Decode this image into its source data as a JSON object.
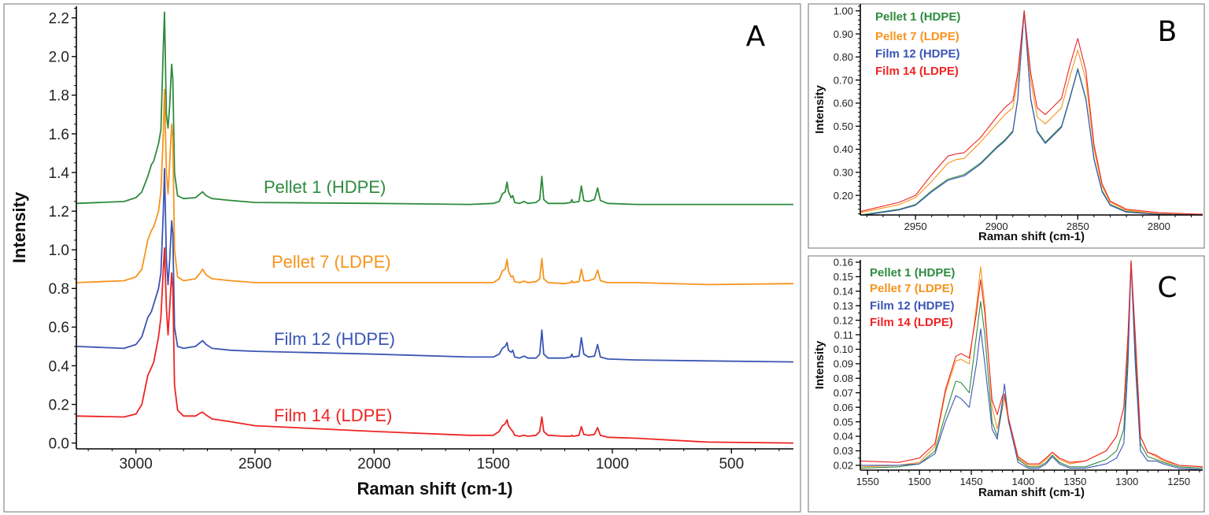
{
  "colors": {
    "Pellet 1 (HDPE)": "#2e8b3e",
    "Pellet 7 (LDPE)": "#f7941d",
    "Film 12 (HDPE)": "#3b55b5",
    "Film 14 (LDPE)": "#ee2424"
  },
  "chart_data": [
    {
      "panel": "A",
      "type": "line",
      "xlabel": "Raman shift (cm-1)",
      "ylabel": "Intensity",
      "xlim": [
        3250,
        240
      ],
      "ylim": [
        -0.03,
        2.26
      ],
      "xticks": [
        "3000",
        "2500",
        "2000",
        "1500",
        "1000",
        "500"
      ],
      "yticks": [
        "0.0",
        "0.2",
        "0.4",
        "0.6",
        "0.8",
        "1.0",
        "1.2",
        "1.4",
        "1.6",
        "1.8",
        "2.0",
        "2.2"
      ],
      "grid": false,
      "legend": "inline labels above each trace",
      "x": [
        3250,
        3050,
        3000,
        2975,
        2950,
        2935,
        2925,
        2905,
        2895,
        2885,
        2880,
        2872,
        2865,
        2858,
        2850,
        2845,
        2838,
        2825,
        2800,
        2750,
        2730,
        2720,
        2705,
        2680,
        2600,
        2500,
        2000,
        1600,
        1500,
        1475,
        1462,
        1450,
        1442,
        1436,
        1425,
        1418,
        1410,
        1390,
        1370,
        1355,
        1320,
        1305,
        1296,
        1288,
        1270,
        1200,
        1175,
        1170,
        1165,
        1140,
        1130,
        1120,
        1100,
        1075,
        1062,
        1050,
        1020,
        900,
        600,
        240
      ],
      "series": [
        {
          "name": "Pellet 1 (HDPE)",
          "y": [
            1.24,
            1.25,
            1.27,
            1.3,
            1.38,
            1.44,
            1.46,
            1.55,
            1.62,
            2.05,
            2.23,
            1.7,
            1.63,
            1.75,
            1.96,
            1.88,
            1.4,
            1.28,
            1.265,
            1.27,
            1.29,
            1.3,
            1.28,
            1.265,
            1.255,
            1.245,
            1.24,
            1.235,
            1.24,
            1.25,
            1.29,
            1.3,
            1.35,
            1.3,
            1.27,
            1.28,
            1.245,
            1.24,
            1.25,
            1.24,
            1.245,
            1.26,
            1.38,
            1.26,
            1.24,
            1.24,
            1.245,
            1.26,
            1.245,
            1.25,
            1.33,
            1.255,
            1.25,
            1.26,
            1.32,
            1.255,
            1.24,
            1.235,
            1.235,
            1.235
          ]
        },
        {
          "name": "Pellet 7 (LDPE)",
          "y": [
            0.83,
            0.84,
            0.86,
            0.9,
            1.05,
            1.1,
            1.12,
            1.2,
            1.3,
            1.6,
            1.83,
            1.4,
            1.29,
            1.45,
            1.65,
            1.58,
            1.0,
            0.86,
            0.84,
            0.85,
            0.88,
            0.9,
            0.87,
            0.85,
            0.84,
            0.83,
            0.83,
            0.83,
            0.83,
            0.85,
            0.89,
            0.9,
            0.95,
            0.89,
            0.86,
            0.865,
            0.835,
            0.83,
            0.838,
            0.83,
            0.835,
            0.85,
            0.955,
            0.85,
            0.83,
            0.825,
            0.83,
            0.84,
            0.83,
            0.835,
            0.9,
            0.84,
            0.84,
            0.85,
            0.895,
            0.84,
            0.83,
            0.83,
            0.82,
            0.825
          ]
        },
        {
          "name": "Film 12 (HDPE)",
          "y": [
            0.5,
            0.49,
            0.51,
            0.55,
            0.65,
            0.68,
            0.72,
            0.8,
            0.88,
            1.2,
            1.42,
            0.95,
            0.82,
            0.95,
            1.15,
            1.08,
            0.6,
            0.5,
            0.49,
            0.5,
            0.52,
            0.53,
            0.51,
            0.49,
            0.48,
            0.475,
            0.46,
            0.445,
            0.445,
            0.46,
            0.49,
            0.5,
            0.52,
            0.48,
            0.47,
            0.48,
            0.445,
            0.44,
            0.45,
            0.44,
            0.44,
            0.46,
            0.585,
            0.46,
            0.44,
            0.44,
            0.445,
            0.46,
            0.445,
            0.45,
            0.545,
            0.46,
            0.445,
            0.45,
            0.51,
            0.445,
            0.435,
            0.43,
            0.425,
            0.42
          ]
        },
        {
          "name": "Film 14 (LDPE)",
          "y": [
            0.14,
            0.135,
            0.15,
            0.2,
            0.35,
            0.39,
            0.42,
            0.55,
            0.65,
            0.9,
            1.01,
            0.7,
            0.56,
            0.7,
            0.88,
            0.8,
            0.3,
            0.17,
            0.14,
            0.14,
            0.155,
            0.16,
            0.145,
            0.125,
            0.11,
            0.09,
            0.06,
            0.04,
            0.04,
            0.06,
            0.09,
            0.1,
            0.12,
            0.09,
            0.07,
            0.06,
            0.04,
            0.035,
            0.04,
            0.035,
            0.04,
            0.06,
            0.135,
            0.06,
            0.04,
            0.035,
            0.035,
            0.04,
            0.035,
            0.04,
            0.085,
            0.045,
            0.04,
            0.045,
            0.08,
            0.04,
            0.03,
            0.025,
            0.005,
            0.0
          ]
        }
      ]
    },
    {
      "panel": "B",
      "type": "line",
      "xlabel": "Raman shift (cm-1)",
      "ylabel": "Intensity",
      "xlim": [
        2984,
        2773
      ],
      "ylim": [
        0.115,
        1.03
      ],
      "xticks": [
        "2950",
        "2900",
        "2850",
        "2800"
      ],
      "yticks": [
        "0.20",
        "0.30",
        "0.40",
        "0.50",
        "0.60",
        "0.70",
        "0.80",
        "0.90",
        "1.00"
      ],
      "grid": false,
      "legend": "top-left",
      "x": [
        2984,
        2960,
        2950,
        2940,
        2930,
        2925,
        2920,
        2910,
        2900,
        2895,
        2890,
        2887,
        2883,
        2879,
        2875,
        2870,
        2860,
        2855,
        2850,
        2845,
        2840,
        2835,
        2830,
        2820,
        2800,
        2773
      ],
      "series": [
        {
          "name": "Pellet 1 (HDPE)",
          "y": [
            0.115,
            0.14,
            0.16,
            0.22,
            0.27,
            0.28,
            0.29,
            0.34,
            0.41,
            0.44,
            0.48,
            0.62,
            1.0,
            0.62,
            0.48,
            0.43,
            0.5,
            0.62,
            0.75,
            0.62,
            0.36,
            0.22,
            0.16,
            0.13,
            0.12,
            0.115
          ]
        },
        {
          "name": "Pellet 7 (LDPE)",
          "y": [
            0.125,
            0.16,
            0.19,
            0.26,
            0.34,
            0.355,
            0.36,
            0.43,
            0.51,
            0.55,
            0.58,
            0.7,
            1.0,
            0.7,
            0.54,
            0.51,
            0.58,
            0.71,
            0.83,
            0.7,
            0.4,
            0.24,
            0.17,
            0.135,
            0.12,
            0.115
          ]
        },
        {
          "name": "Film 12 (HDPE)",
          "y": [
            0.112,
            0.137,
            0.157,
            0.215,
            0.265,
            0.275,
            0.284,
            0.335,
            0.405,
            0.435,
            0.475,
            0.615,
            1.0,
            0.615,
            0.475,
            0.425,
            0.495,
            0.615,
            0.745,
            0.615,
            0.355,
            0.215,
            0.157,
            0.127,
            0.118,
            0.114
          ]
        },
        {
          "name": "Film 14 (LDPE)",
          "y": [
            0.13,
            0.17,
            0.2,
            0.29,
            0.37,
            0.38,
            0.385,
            0.45,
            0.54,
            0.58,
            0.61,
            0.73,
            1.0,
            0.73,
            0.58,
            0.55,
            0.62,
            0.76,
            0.88,
            0.74,
            0.42,
            0.25,
            0.175,
            0.14,
            0.125,
            0.118
          ]
        }
      ]
    },
    {
      "panel": "C",
      "type": "line",
      "xlabel": "Raman shift (cm-1)",
      "ylabel": "Intensity",
      "xlim": [
        1557,
        1227
      ],
      "ylim": [
        0.0167,
        0.1616
      ],
      "xticks": [
        "1550",
        "1500",
        "1450",
        "1400",
        "1350",
        "1300",
        "1250"
      ],
      "yticks": [
        "0.02",
        "0.03",
        "0.04",
        "0.05",
        "0.06",
        "0.07",
        "0.08",
        "0.09",
        "0.10",
        "0.11",
        "0.12",
        "0.13",
        "0.14",
        "0.15",
        "0.16"
      ],
      "grid": false,
      "legend": "top-left",
      "x": [
        1557,
        1520,
        1500,
        1485,
        1475,
        1465,
        1460,
        1452,
        1445,
        1441,
        1437,
        1430,
        1425,
        1420,
        1418,
        1414,
        1405,
        1395,
        1385,
        1378,
        1372,
        1365,
        1355,
        1340,
        1320,
        1310,
        1303,
        1299,
        1296,
        1292,
        1287,
        1280,
        1272,
        1265,
        1250,
        1227
      ],
      "series": [
        {
          "name": "Pellet 1 (HDPE)",
          "y": [
            0.018,
            0.019,
            0.021,
            0.03,
            0.055,
            0.078,
            0.077,
            0.07,
            0.11,
            0.133,
            0.11,
            0.05,
            0.04,
            0.06,
            0.068,
            0.05,
            0.024,
            0.019,
            0.019,
            0.022,
            0.027,
            0.022,
            0.019,
            0.019,
            0.024,
            0.03,
            0.045,
            0.1,
            0.16,
            0.1,
            0.035,
            0.026,
            0.024,
            0.022,
            0.019,
            0.018
          ]
        },
        {
          "name": "Pellet 7 (LDPE)",
          "y": [
            0.019,
            0.02,
            0.022,
            0.033,
            0.07,
            0.092,
            0.093,
            0.09,
            0.13,
            0.157,
            0.13,
            0.06,
            0.045,
            0.062,
            0.066,
            0.05,
            0.025,
            0.02,
            0.02,
            0.024,
            0.029,
            0.024,
            0.021,
            0.023,
            0.03,
            0.04,
            0.06,
            0.11,
            0.16,
            0.11,
            0.04,
            0.029,
            0.026,
            0.023,
            0.02,
            0.019
          ]
        },
        {
          "name": "Film 12 (HDPE)",
          "y": [
            0.02,
            0.02,
            0.021,
            0.028,
            0.05,
            0.068,
            0.066,
            0.06,
            0.09,
            0.114,
            0.09,
            0.045,
            0.038,
            0.065,
            0.076,
            0.05,
            0.022,
            0.018,
            0.018,
            0.021,
            0.026,
            0.021,
            0.018,
            0.018,
            0.021,
            0.025,
            0.035,
            0.09,
            0.16,
            0.09,
            0.03,
            0.023,
            0.023,
            0.021,
            0.018,
            0.017
          ]
        },
        {
          "name": "Film 14 (LDPE)",
          "y": [
            0.023,
            0.022,
            0.025,
            0.035,
            0.072,
            0.095,
            0.097,
            0.094,
            0.125,
            0.148,
            0.125,
            0.065,
            0.055,
            0.068,
            0.069,
            0.052,
            0.026,
            0.021,
            0.021,
            0.025,
            0.029,
            0.025,
            0.022,
            0.023,
            0.03,
            0.04,
            0.06,
            0.11,
            0.161,
            0.11,
            0.04,
            0.029,
            0.027,
            0.024,
            0.02,
            0.019
          ]
        }
      ]
    }
  ]
}
